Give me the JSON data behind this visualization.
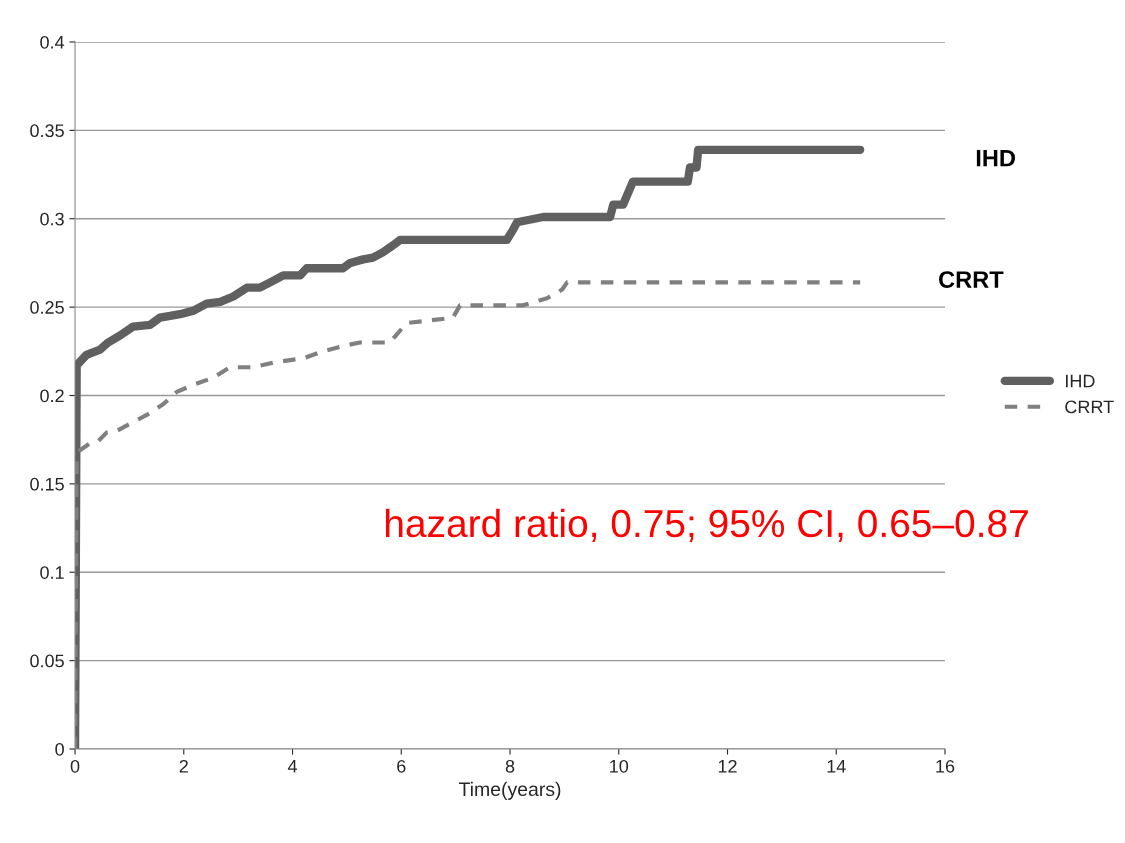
{
  "chart_data": {
    "type": "line",
    "xlabel": "Time(years)",
    "xlim": [
      0,
      16
    ],
    "xticks": [
      0,
      2,
      4,
      6,
      8,
      10,
      12,
      14,
      16
    ],
    "ylim": [
      0,
      0.4
    ],
    "yticks": [
      0,
      0.05,
      0.1,
      0.15,
      0.2,
      0.25,
      0.3,
      0.35,
      0.4
    ],
    "grid": "y",
    "legend": "right",
    "annotations": [
      "IHD",
      "CRRT",
      "hazard ratio, 0.75; 95% CI, 0.65–0.87"
    ],
    "series": [
      {
        "name": "IHD",
        "color": "#606060",
        "line_style": "solid",
        "x": [
          0,
          0.03,
          0.21,
          0.46,
          0.61,
          0.83,
          1.07,
          1.38,
          1.56,
          1.75,
          1.93,
          2.18,
          2.42,
          2.67,
          2.91,
          3.16,
          3.4,
          3.65,
          3.83,
          4.14,
          4.26,
          4.93,
          5.06,
          5.3,
          5.48,
          5.66,
          5.85,
          5.98,
          7.94,
          8.06,
          8.13,
          8.61,
          9.84,
          9.9,
          10.08,
          10.26,
          11.27,
          11.31,
          11.43,
          11.46,
          14.44
        ],
        "values": [
          0,
          0.217,
          0.223,
          0.226,
          0.23,
          0.234,
          0.239,
          0.24,
          0.244,
          0.245,
          0.246,
          0.248,
          0.252,
          0.253,
          0.256,
          0.261,
          0.261,
          0.265,
          0.268,
          0.268,
          0.272,
          0.272,
          0.275,
          0.277,
          0.278,
          0.281,
          0.285,
          0.288,
          0.288,
          0.294,
          0.298,
          0.301,
          0.301,
          0.308,
          0.308,
          0.321,
          0.321,
          0.329,
          0.329,
          0.339,
          0.339
        ]
      },
      {
        "name": "CRRT",
        "color": "#808080",
        "line_style": "dashed",
        "x": [
          0,
          0.03,
          0.09,
          0.28,
          0.42,
          0.58,
          0.77,
          1.01,
          1.32,
          1.62,
          1.87,
          2.17,
          2.54,
          2.85,
          3.27,
          3.71,
          4.2,
          4.56,
          4.93,
          5.24,
          5.79,
          6.1,
          6.95,
          7.08,
          8.24,
          8.68,
          8.96,
          9.05,
          14.44
        ],
        "values": [
          0,
          0.165,
          0.169,
          0.173,
          0.174,
          0.179,
          0.18,
          0.184,
          0.189,
          0.195,
          0.202,
          0.206,
          0.21,
          0.216,
          0.216,
          0.219,
          0.221,
          0.225,
          0.228,
          0.23,
          0.23,
          0.241,
          0.244,
          0.251,
          0.251,
          0.255,
          0.26,
          0.264,
          0.264
        ]
      }
    ]
  }
}
